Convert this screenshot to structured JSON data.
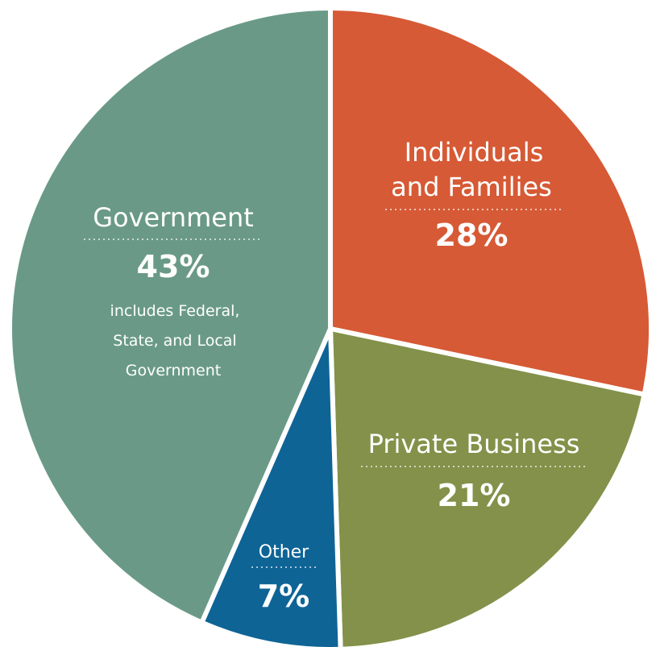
{
  "chart_data": {
    "type": "pie",
    "slices": [
      {
        "label": "Individuals and Families",
        "value": 28,
        "value_label": "28%",
        "color": "#d65a35"
      },
      {
        "label": "Private Business",
        "value": 21,
        "value_label": "21%",
        "color": "#83914a"
      },
      {
        "label": "Other",
        "value": 7,
        "value_label": "7%",
        "color": "#0f6496"
      },
      {
        "label": "Government",
        "value": 43,
        "value_label": "43%",
        "color": "#6a9a87",
        "note": "includes Federal, State, and Local Government"
      }
    ],
    "labels": {
      "individuals_line1": "Individuals",
      "individuals_line2": "and Families",
      "business": "Private Business",
      "other": "Other",
      "government": "Government",
      "government_note_line1": "includes Federal,",
      "government_note_line2": "State, and Local",
      "government_note_line3": "Government"
    }
  }
}
